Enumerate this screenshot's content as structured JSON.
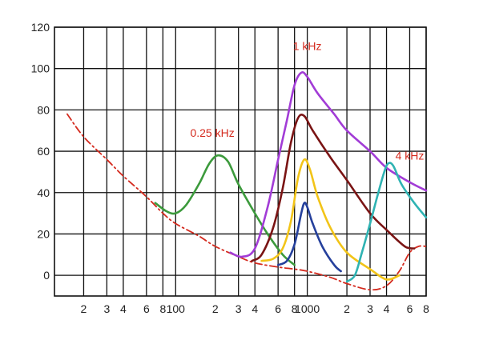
{
  "chart_data": {
    "type": "line",
    "x_scale": "log",
    "xlim": [
      12,
      8000
    ],
    "ylim": [
      -10,
      120
    ],
    "grid": true,
    "y_ticks": [
      {
        "value": 0,
        "label": "0"
      },
      {
        "value": 20,
        "label": "20"
      },
      {
        "value": 40,
        "label": "40"
      },
      {
        "value": 60,
        "label": "60"
      },
      {
        "value": 80,
        "label": "80"
      },
      {
        "value": 100,
        "label": "100"
      },
      {
        "value": 120,
        "label": "120"
      }
    ],
    "x_ticks": [
      {
        "value": 20,
        "label": "2"
      },
      {
        "value": 30,
        "label": "3"
      },
      {
        "value": 40,
        "label": "4"
      },
      {
        "value": 60,
        "label": "6"
      },
      {
        "value": 80,
        "label": "8"
      },
      {
        "value": 100,
        "label": "100"
      },
      {
        "value": 200,
        "label": "2"
      },
      {
        "value": 300,
        "label": "3"
      },
      {
        "value": 400,
        "label": "4"
      },
      {
        "value": 600,
        "label": "6"
      },
      {
        "value": 800,
        "label": "8"
      },
      {
        "value": 1000,
        "label": "1000"
      },
      {
        "value": 2000,
        "label": "2"
      },
      {
        "value": 3000,
        "label": "3"
      },
      {
        "value": 4000,
        "label": "4"
      },
      {
        "value": 6000,
        "label": "6"
      },
      {
        "value": 8000,
        "label": "8"
      }
    ],
    "series": [
      {
        "color": "#d42a1e",
        "dashed": true,
        "points": [
          [
            15,
            78
          ],
          [
            20,
            67
          ],
          [
            30,
            56
          ],
          [
            40,
            48
          ],
          [
            60,
            38
          ],
          [
            80,
            30
          ],
          [
            100,
            25
          ],
          [
            150,
            19
          ],
          [
            200,
            14
          ],
          [
            300,
            9
          ],
          [
            400,
            6
          ],
          [
            600,
            4
          ],
          [
            800,
            3
          ],
          [
            1000,
            2
          ],
          [
            1500,
            -1
          ],
          [
            2000,
            -4
          ],
          [
            3000,
            -7
          ],
          [
            4000,
            -5
          ],
          [
            5000,
            2
          ],
          [
            6000,
            11
          ],
          [
            7000,
            14
          ],
          [
            8000,
            14
          ]
        ]
      },
      {
        "color": "#3c9a3c",
        "points": [
          [
            70,
            35
          ],
          [
            85,
            31
          ],
          [
            100,
            30
          ],
          [
            120,
            34
          ],
          [
            150,
            44
          ],
          [
            180,
            54
          ],
          [
            210,
            58
          ],
          [
            250,
            55
          ],
          [
            300,
            44
          ],
          [
            400,
            30
          ],
          [
            500,
            20
          ],
          [
            650,
            10
          ],
          [
            800,
            5
          ]
        ]
      },
      {
        "color": "#a23cd6",
        "points": [
          [
            260,
            11
          ],
          [
            320,
            9
          ],
          [
            400,
            13
          ],
          [
            500,
            33
          ],
          [
            600,
            56
          ],
          [
            700,
            75
          ],
          [
            800,
            92
          ],
          [
            900,
            98
          ],
          [
            1000,
            96
          ],
          [
            1200,
            88
          ],
          [
            1600,
            78
          ],
          [
            2000,
            70
          ],
          [
            3000,
            60
          ],
          [
            4000,
            52
          ],
          [
            6000,
            45
          ],
          [
            8000,
            41
          ]
        ]
      },
      {
        "color": "#7a1414",
        "points": [
          [
            380,
            7
          ],
          [
            450,
            10
          ],
          [
            550,
            23
          ],
          [
            650,
            42
          ],
          [
            750,
            64
          ],
          [
            850,
            76
          ],
          [
            950,
            77
          ],
          [
            1100,
            70
          ],
          [
            1500,
            57
          ],
          [
            2000,
            46
          ],
          [
            3000,
            30
          ],
          [
            4000,
            22
          ],
          [
            5500,
            14
          ],
          [
            6500,
            13
          ]
        ]
      },
      {
        "color": "#f2c418",
        "points": [
          [
            450,
            7
          ],
          [
            550,
            8
          ],
          [
            650,
            13
          ],
          [
            750,
            26
          ],
          [
            850,
            47
          ],
          [
            950,
            56
          ],
          [
            1050,
            51
          ],
          [
            1200,
            38
          ],
          [
            1500,
            23
          ],
          [
            2000,
            11
          ],
          [
            3000,
            3
          ],
          [
            4000,
            -2
          ],
          [
            5000,
            0
          ]
        ]
      },
      {
        "color": "#25409c",
        "points": [
          [
            600,
            5
          ],
          [
            700,
            7
          ],
          [
            800,
            15
          ],
          [
            900,
            30
          ],
          [
            950,
            35
          ],
          [
            1000,
            33
          ],
          [
            1100,
            25
          ],
          [
            1300,
            14
          ],
          [
            1600,
            5
          ],
          [
            1800,
            2
          ]
        ]
      },
      {
        "color": "#2fb3b3",
        "points": [
          [
            2000,
            -3
          ],
          [
            2300,
            0
          ],
          [
            2600,
            11
          ],
          [
            3000,
            25
          ],
          [
            3400,
            38
          ],
          [
            3800,
            49
          ],
          [
            4100,
            54
          ],
          [
            4500,
            53
          ],
          [
            5200,
            44
          ],
          [
            6500,
            35
          ],
          [
            8000,
            28
          ]
        ]
      }
    ],
    "annotations": [
      {
        "text": "0.25 kHz",
        "x": 190,
        "y": 67,
        "color": "#d42a1e"
      },
      {
        "text": "1 kHz",
        "x": 1000,
        "y": 109,
        "color": "#d42a1e"
      },
      {
        "text": "4 kHz",
        "x": 6000,
        "y": 56,
        "color": "#d42a1e"
      }
    ]
  }
}
